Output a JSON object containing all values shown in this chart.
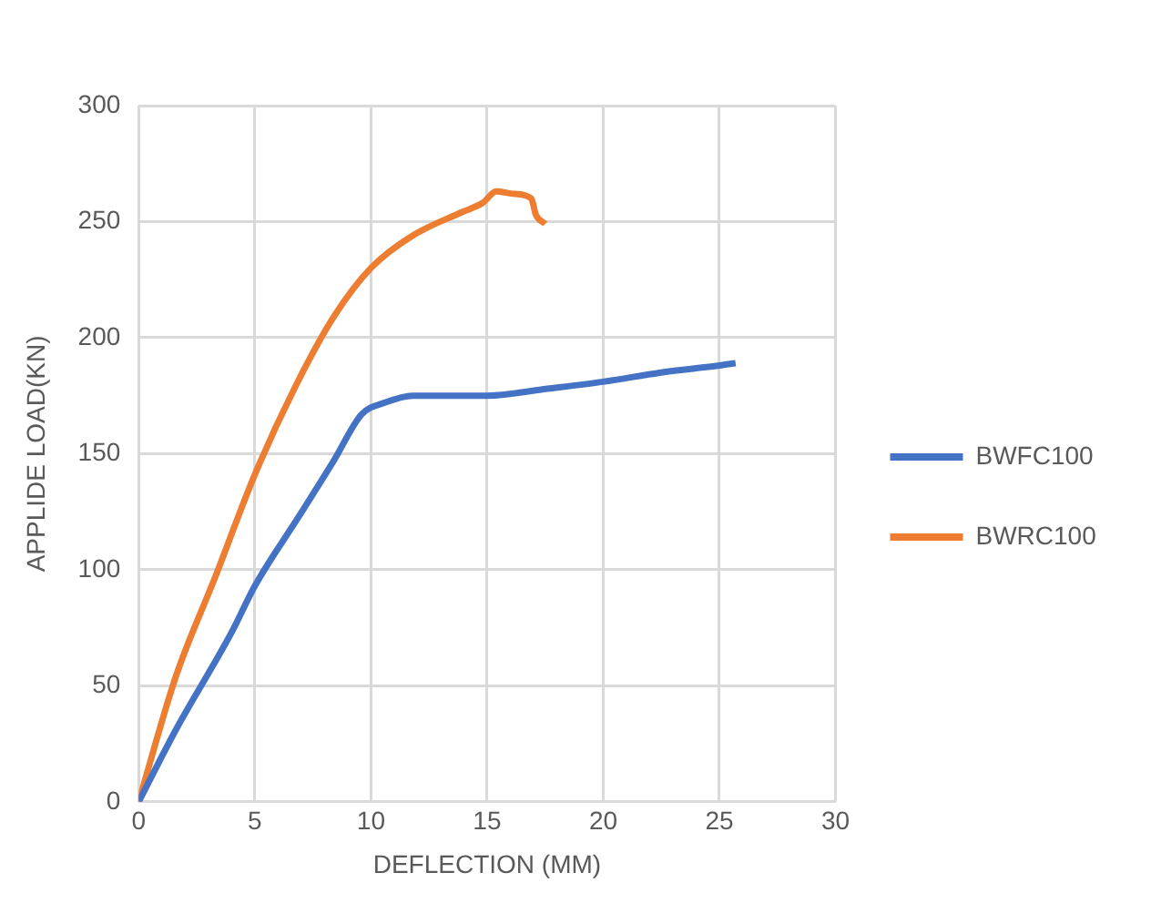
{
  "chart_data": {
    "type": "line",
    "xlabel": "DEFLECTION (MM)",
    "ylabel": "APPLIDE LOAD(KN)",
    "xlim": [
      0,
      30
    ],
    "xticks": [
      0,
      5,
      10,
      15,
      20,
      25,
      30
    ],
    "ylim": [
      0,
      300
    ],
    "yticks": [
      0,
      50,
      100,
      150,
      200,
      250,
      300
    ],
    "grid": true,
    "legend": "right",
    "marker": "none",
    "line_style": "solid",
    "series": [
      {
        "name": "BWFC100",
        "color": "#4472c4",
        "x": [
          0,
          1.6,
          4,
          5,
          6.9,
          8.4,
          9.6,
          10.6,
          11.8,
          13.9,
          15,
          17.6,
          20,
          22.5,
          25,
          25.7
        ],
        "values": [
          0,
          31,
          73,
          93,
          123,
          147,
          167,
          172,
          175,
          175,
          175,
          178,
          181,
          185,
          188,
          189
        ]
      },
      {
        "name": "BWRC100",
        "color": "#ed7d31",
        "x": [
          0,
          1.6,
          3.3,
          5,
          6.7,
          8.4,
          10,
          11.8,
          13.9,
          14.8,
          15.4,
          16.1,
          16.9,
          17.1,
          17.5
        ],
        "values": [
          0,
          54,
          97,
          141,
          178,
          209,
          230,
          244,
          254,
          258,
          263,
          262,
          260,
          253,
          249
        ]
      }
    ]
  }
}
